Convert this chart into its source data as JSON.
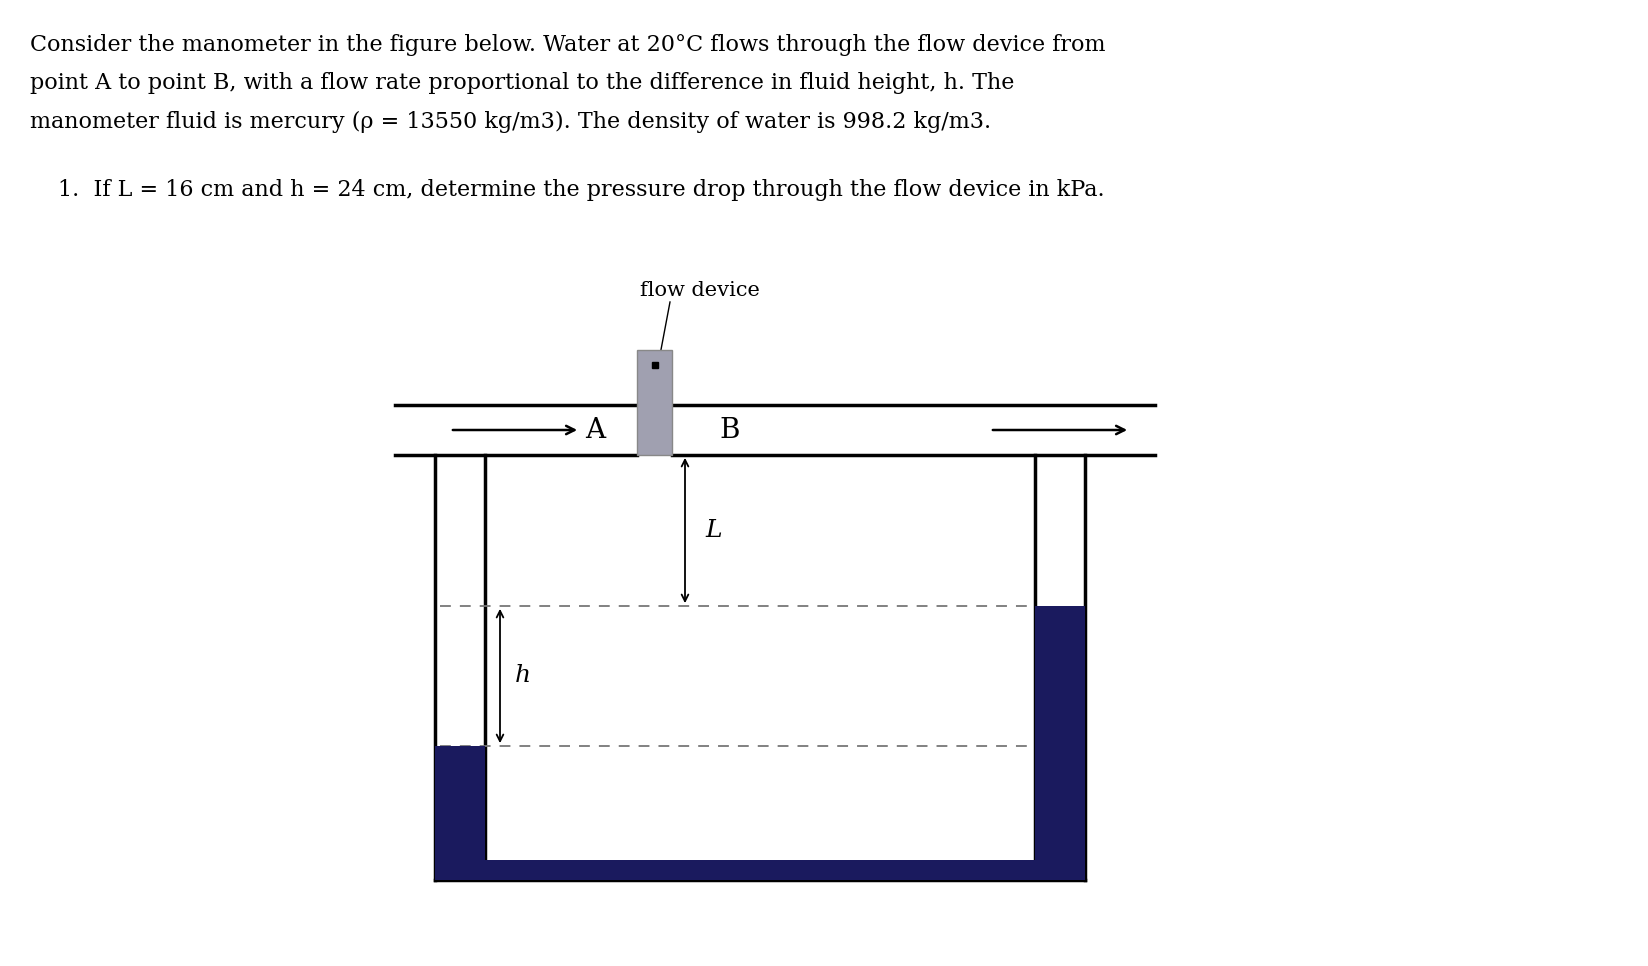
{
  "title_line1": "Consider the manometer in the figure below. Water at 20°C flows through the flow device from",
  "title_line2": "point A to point B, with a flow rate proportional to the difference in fluid height, h. The",
  "title_line3": "manometer fluid is mercury (ρ = 13550 kg/m3). The density of water is 998.2 kg/m3.",
  "question_text": "1.  If L = 16 cm and h = 24 cm, determine the pressure drop through the flow device in kPa.",
  "flow_device_label": "flow device",
  "label_A": "A",
  "label_B": "B",
  "label_L": "L",
  "label_h": "h",
  "bg_color": "#ffffff",
  "pipe_color": "#000000",
  "mercury_color": "#1a1a5e",
  "device_color": "#a0a0b0",
  "dashed_color": "#777777",
  "arrow_color": "#000000",
  "font_size_body": 16,
  "font_size_question": 16,
  "font_size_label": 18,
  "font_size_flow_device": 15
}
